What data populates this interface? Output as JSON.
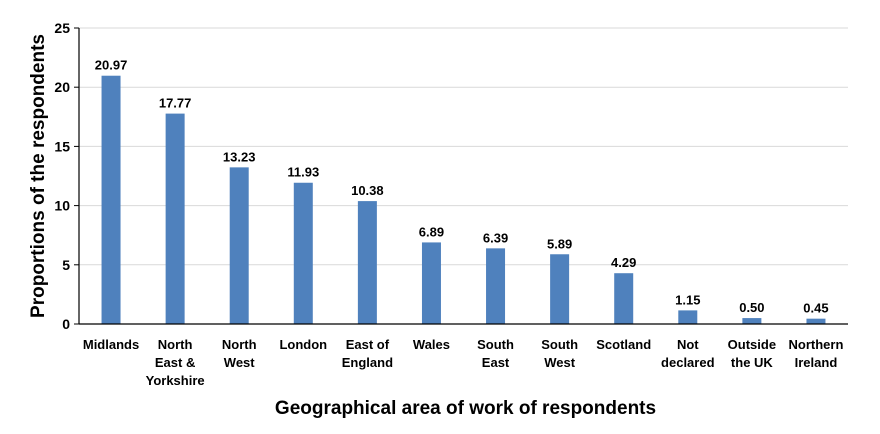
{
  "chart_data": {
    "type": "bar",
    "categories": [
      [
        "Midlands"
      ],
      [
        "North",
        "East &",
        "Yorkshire"
      ],
      [
        "North",
        "West"
      ],
      [
        "London"
      ],
      [
        "East of",
        "England"
      ],
      [
        "Wales"
      ],
      [
        "South",
        "East"
      ],
      [
        "South",
        "West"
      ],
      [
        "Scotland"
      ],
      [
        "Not",
        "declared"
      ],
      [
        "Outside",
        "the UK"
      ],
      [
        "Northern",
        "Ireland"
      ]
    ],
    "values": [
      20.97,
      17.77,
      13.23,
      11.93,
      10.38,
      6.89,
      6.39,
      5.89,
      4.29,
      1.15,
      0.5,
      0.45
    ],
    "value_labels": [
      "20.97",
      "17.77",
      "13.23",
      "11.93",
      "10.38",
      "6.89",
      "6.39",
      "5.89",
      "4.29",
      "1.15",
      "0.50",
      "0.45"
    ],
    "title": "",
    "xlabel": "Geographical area of work of respondents",
    "ylabel": "Proportions of the respondents",
    "ylim": [
      0,
      25
    ],
    "yticks": [
      "0",
      "5",
      "10",
      "15",
      "20",
      "25"
    ],
    "grid": true,
    "bar_color": "#4f81bd",
    "grid_color": "#d9d9d9"
  }
}
